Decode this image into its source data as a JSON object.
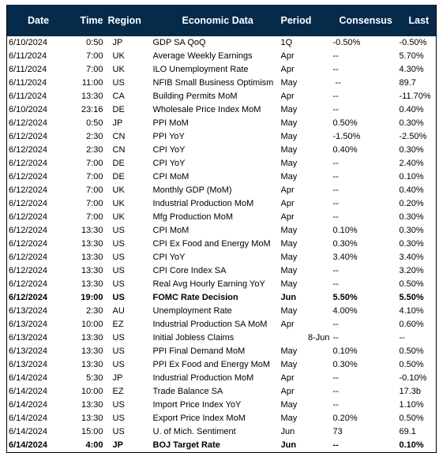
{
  "headers": {
    "date": "Date",
    "time": "Time",
    "region": "Region",
    "economic_data": "Economic Data",
    "period": "Period",
    "consensus": "Consensus",
    "last": "Last"
  },
  "rows": [
    {
      "date": "6/10/2024",
      "time": "0:50",
      "region": "JP",
      "data": "GDP SA QoQ",
      "period": "1Q",
      "consensus": "-0.50%",
      "last": "-0.50%",
      "bold": false
    },
    {
      "date": "6/11/2024",
      "time": "7:00",
      "region": "UK",
      "data": "Average Weekly Earnings",
      "period": "Apr",
      "consensus": "--",
      "last": "5.70%",
      "bold": false
    },
    {
      "date": "6/11/2024",
      "time": "7:00",
      "region": "UK",
      "data": "ILO Unemployment Rate",
      "period": "Apr",
      "consensus": "--",
      "last": "4.30%",
      "bold": false
    },
    {
      "date": "6/11/2024",
      "time": "11:00",
      "region": "US",
      "data": "NFIB Small Business Optimism",
      "period": "May",
      "consensus": "--",
      "last": "89.7",
      "bold": false,
      "cons_indent": true
    },
    {
      "date": "6/11/2024",
      "time": "13:30",
      "region": "CA",
      "data": "Building Permits MoM",
      "period": "Apr",
      "consensus": "--",
      "last": "-11.70%",
      "bold": false
    },
    {
      "date": "6/10/2024",
      "time": "23:16",
      "region": "DE",
      "data": "Wholesale Price Index MoM",
      "period": "May",
      "consensus": "--",
      "last": "0.40%",
      "bold": false
    },
    {
      "date": "6/12/2024",
      "time": "0:50",
      "region": "JP",
      "data": "PPI MoM",
      "period": "May",
      "consensus": "0.50%",
      "last": "0.30%",
      "bold": false
    },
    {
      "date": "6/12/2024",
      "time": "2:30",
      "region": "CN",
      "data": "PPI YoY",
      "period": "May",
      "consensus": "-1.50%",
      "last": "-2.50%",
      "bold": false
    },
    {
      "date": "6/12/2024",
      "time": "2:30",
      "region": "CN",
      "data": "CPI YoY",
      "period": "May",
      "consensus": "0.40%",
      "last": "0.30%",
      "bold": false
    },
    {
      "date": "6/12/2024",
      "time": "7:00",
      "region": "DE",
      "data": "CPI YoY",
      "period": "May",
      "consensus": "--",
      "last": "2.40%",
      "bold": false
    },
    {
      "date": "6/12/2024",
      "time": "7:00",
      "region": "DE",
      "data": "CPI MoM",
      "period": "May",
      "consensus": "--",
      "last": "0.10%",
      "bold": false
    },
    {
      "date": "6/12/2024",
      "time": "7:00",
      "region": "UK",
      "data": "Monthly GDP (MoM)",
      "period": "Apr",
      "consensus": "--",
      "last": "0.40%",
      "bold": false
    },
    {
      "date": "6/12/2024",
      "time": "7:00",
      "region": "UK",
      "data": "Industrial Production MoM",
      "period": "Apr",
      "consensus": "--",
      "last": "0.20%",
      "bold": false
    },
    {
      "date": "6/12/2024",
      "time": "7:00",
      "region": "UK",
      "data": "Mfg Production MoM",
      "period": "Apr",
      "consensus": "--",
      "last": "0.30%",
      "bold": false
    },
    {
      "date": "6/12/2024",
      "time": "13:30",
      "region": "US",
      "data": "CPI MoM",
      "period": "May",
      "consensus": "0.10%",
      "last": "0.30%",
      "bold": false
    },
    {
      "date": "6/12/2024",
      "time": "13:30",
      "region": "US",
      "data": "CPI Ex Food and Energy MoM",
      "period": "May",
      "consensus": "0.30%",
      "last": "0.30%",
      "bold": false
    },
    {
      "date": "6/12/2024",
      "time": "13:30",
      "region": "US",
      "data": "CPI YoY",
      "period": "May",
      "consensus": "3.40%",
      "last": "3.40%",
      "bold": false
    },
    {
      "date": "6/12/2024",
      "time": "13:30",
      "region": "US",
      "data": "CPI Core Index SA",
      "period": "May",
      "consensus": "--",
      "last": "3.20%",
      "bold": false
    },
    {
      "date": "6/12/2024",
      "time": "13:30",
      "region": "US",
      "data": "Real Avg Hourly Earning YoY",
      "period": "May",
      "consensus": "--",
      "last": "0.50%",
      "bold": false
    },
    {
      "date": "6/12/2024",
      "time": "19:00",
      "region": "US",
      "data": "FOMC Rate Decision",
      "period": "Jun",
      "consensus": "5.50%",
      "last": "5.50%",
      "bold": true
    },
    {
      "date": "6/13/2024",
      "time": "2:30",
      "region": "AU",
      "data": "Unemployment Rate",
      "period": "May",
      "consensus": "4.00%",
      "last": "4.10%",
      "bold": false
    },
    {
      "date": "6/13/2024",
      "time": "10:00",
      "region": "EZ",
      "data": "Industrial Production SA MoM",
      "period": "Apr",
      "consensus": "--",
      "last": "0.60%",
      "bold": false
    },
    {
      "date": "6/13/2024",
      "time": "13:30",
      "region": "US",
      "data": "Initial Jobless Claims",
      "period": "8-Jun",
      "consensus": "--",
      "last": "--",
      "bold": false,
      "period_right": true
    },
    {
      "date": "6/13/2024",
      "time": "13:30",
      "region": "US",
      "data": "PPI Final Demand MoM",
      "period": "May",
      "consensus": "0.10%",
      "last": "0.50%",
      "bold": false
    },
    {
      "date": "6/13/2024",
      "time": "13:30",
      "region": "US",
      "data": "PPI Ex Food and Energy MoM",
      "period": "May",
      "consensus": "0.30%",
      "last": "0.50%",
      "bold": false
    },
    {
      "date": "6/14/2024",
      "time": "5:30",
      "region": "JP",
      "data": "Industrial Production MoM",
      "period": "Apr",
      "consensus": "--",
      "last": "-0.10%",
      "bold": false
    },
    {
      "date": "6/14/2024",
      "time": "10:00",
      "region": "EZ",
      "data": "Trade Balance SA",
      "period": "Apr",
      "consensus": "--",
      "last": "17.3b",
      "bold": false
    },
    {
      "date": "6/14/2024",
      "time": "13:30",
      "region": "US",
      "data": "Import Price Index YoY",
      "period": "May",
      "consensus": "--",
      "last": "1.10%",
      "bold": false
    },
    {
      "date": "6/14/2024",
      "time": "13:30",
      "region": "US",
      "data": "Export Price Index MoM",
      "period": "May",
      "consensus": "0.20%",
      "last": "0.50%",
      "bold": false
    },
    {
      "date": "6/14/2024",
      "time": "15:00",
      "region": "US",
      "data": "U. of Mich. Sentiment",
      "period": "Jun",
      "consensus": "73",
      "last": "69.1",
      "bold": false
    },
    {
      "date": "6/14/2024",
      "time": "4:00",
      "region": "JP",
      "data": "BOJ Target Rate",
      "period": "Jun",
      "consensus": "--",
      "last": "0.10%",
      "bold": true
    }
  ],
  "colors": {
    "header_bg": "#062a4a",
    "header_text": "#ffffff",
    "body_text": "#000000"
  }
}
